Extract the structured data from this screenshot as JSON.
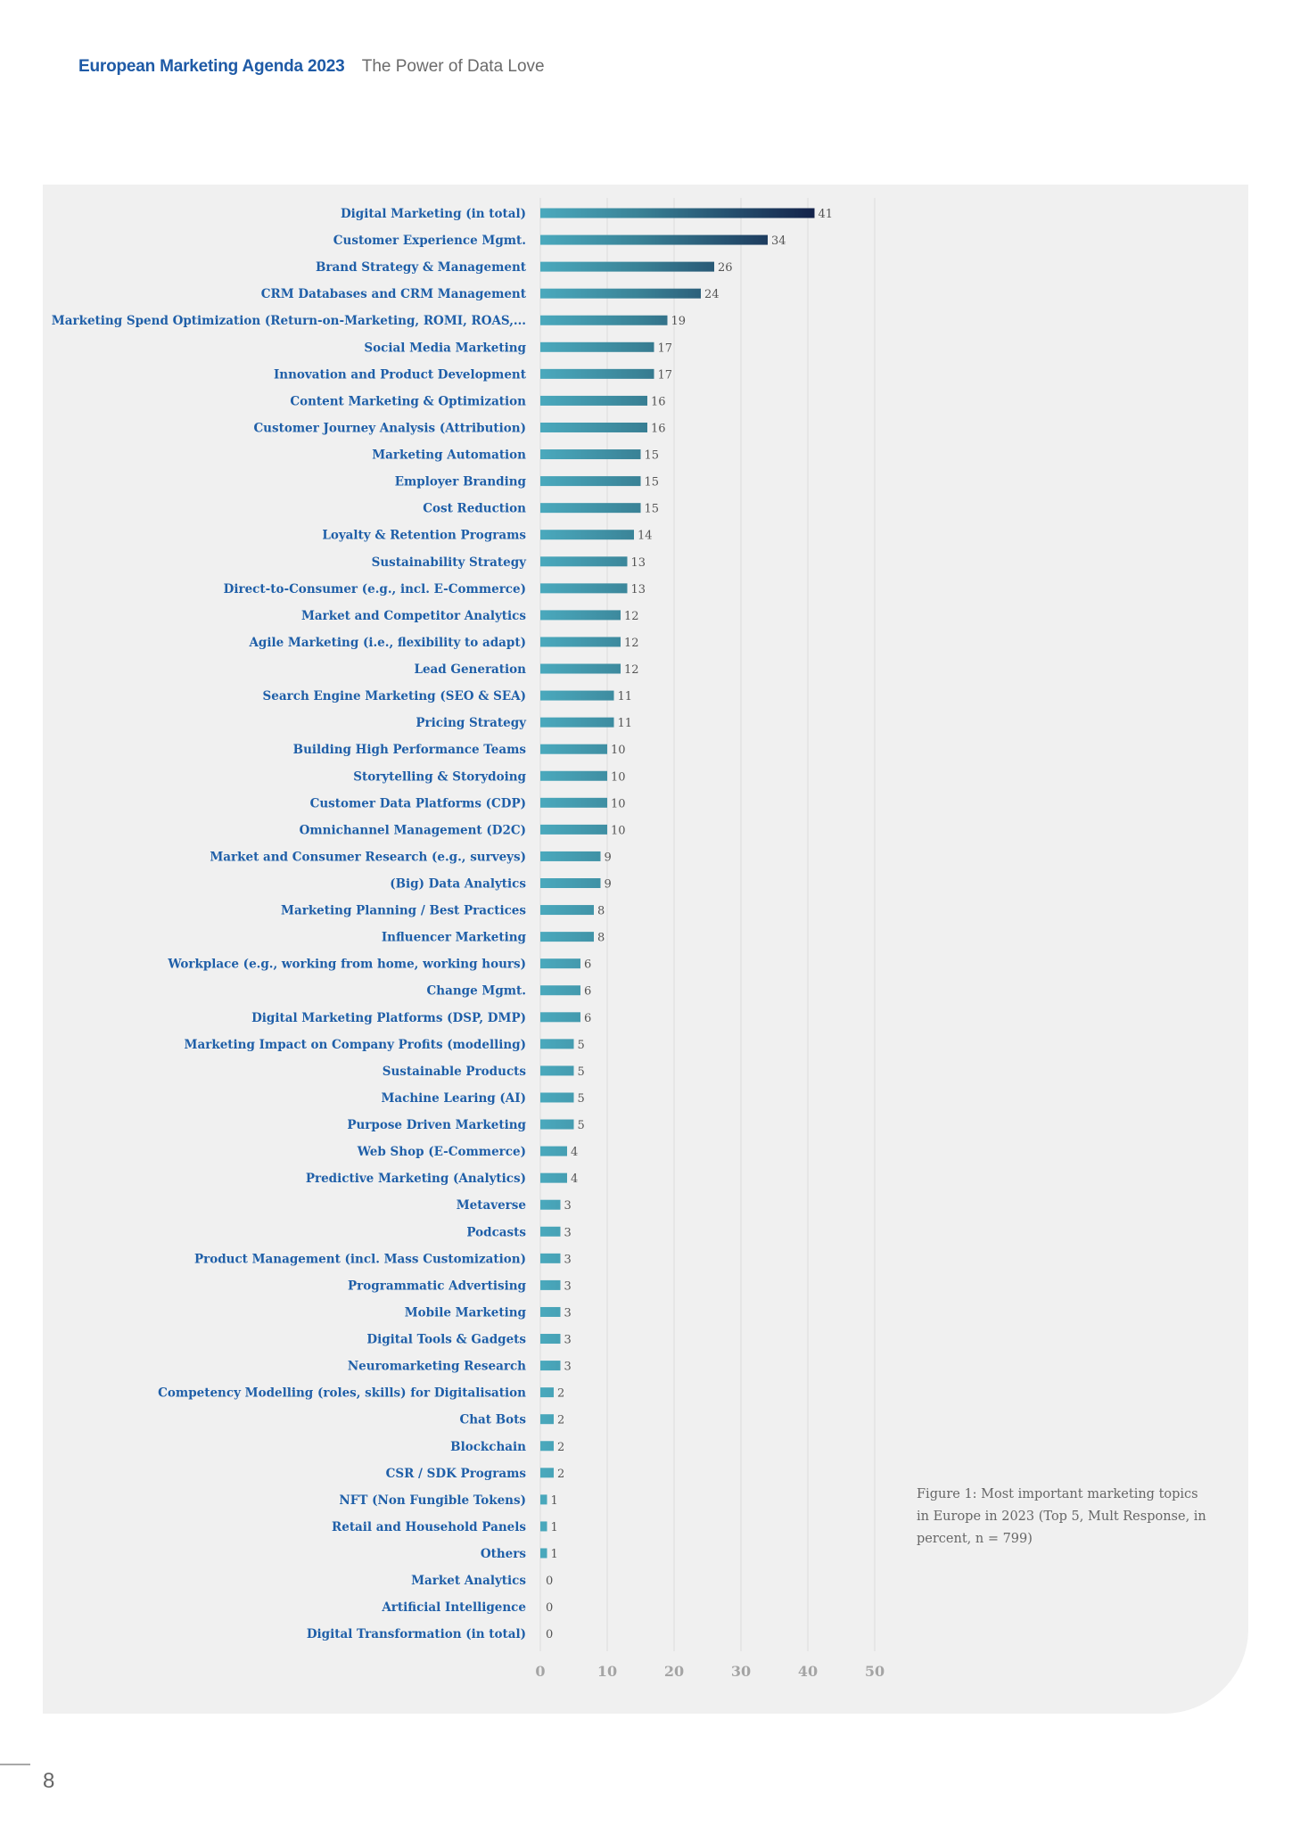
{
  "header": {
    "brand": "European Marketing Agenda 2023",
    "subtitle": "The Power of Data Love"
  },
  "caption": "Figure 1: Most important marketing topics in Europe in 2023 (Top 5, Mult Response, in percent, n = 799)",
  "page_number": "8",
  "colors": {
    "bar_start": "#4aa9bd",
    "bar_end": "#13224a",
    "label": "#1f5fa8",
    "panel": "#f0f0f0"
  },
  "chart_data": {
    "type": "bar",
    "orientation": "horizontal",
    "title": "Most important marketing topics in Europe in 2023 (Top 5, Mult Response, in percent, n = 799)",
    "xlabel": "",
    "ylabel": "",
    "xlim": [
      0,
      50
    ],
    "xticks": [
      "0",
      "10",
      "20",
      "30",
      "40",
      "50"
    ],
    "grid": true,
    "legend": "none",
    "categories": [
      "Digital Marketing (in total)",
      "Customer Experience Mgmt.",
      "Brand Strategy & Management",
      "CRM Databases and CRM Management",
      "Marketing Spend Optimization (Return-on-Marketing, ROMI, ROAS,...",
      "Social Media Marketing",
      "Innovation and Product Development",
      "Content Marketing & Optimization",
      "Customer Journey Analysis (Attribution)",
      "Marketing Automation",
      "Employer Branding",
      "Cost Reduction",
      "Loyalty & Retention Programs",
      "Sustainability Strategy",
      "Direct-to-Consumer (e.g., incl. E-Commerce)",
      "Market and Competitor Analytics",
      "Agile Marketing (i.e., flexibility to adapt)",
      "Lead Generation",
      "Search Engine Marketing (SEO & SEA)",
      "Pricing Strategy",
      "Building High Performance Teams",
      "Storytelling & Storydoing",
      "Customer Data Platforms (CDP)",
      "Omnichannel Management (D2C)",
      "Market and Consumer Research (e.g., surveys)",
      "(Big) Data Analytics",
      "Marketing Planning / Best Practices",
      "Influencer Marketing",
      "Workplace (e.g., working from home, working hours)",
      "Change Mgmt.",
      "Digital Marketing Platforms (DSP, DMP)",
      "Marketing Impact on Company Profits (modelling)",
      "Sustainable Products",
      "Machine Learing (AI)",
      "Purpose Driven Marketing",
      "Web Shop (E-Commerce)",
      "Predictive Marketing (Analytics)",
      "Metaverse",
      "Podcasts",
      "Product Management (incl. Mass Customization)",
      "Programmatic Advertising",
      "Mobile Marketing",
      "Digital Tools & Gadgets",
      "Neuromarketing Research",
      "Competency Modelling (roles, skills) for Digitalisation",
      "Chat Bots",
      "Blockchain",
      "CSR / SDK Programs",
      "NFT (Non Fungible Tokens)",
      "Retail and Household Panels",
      "Others",
      "Market Analytics",
      "Artificial Intelligence",
      "Digital Transformation (in total)"
    ],
    "values": [
      41,
      34,
      26,
      24,
      19,
      17,
      17,
      16,
      16,
      15,
      15,
      15,
      14,
      13,
      13,
      12,
      12,
      12,
      11,
      11,
      10,
      10,
      10,
      10,
      9,
      9,
      8,
      8,
      6,
      6,
      6,
      5,
      5,
      5,
      5,
      4,
      4,
      3,
      3,
      3,
      3,
      3,
      3,
      3,
      2,
      2,
      2,
      2,
      1,
      1,
      1,
      0,
      0,
      0
    ]
  }
}
